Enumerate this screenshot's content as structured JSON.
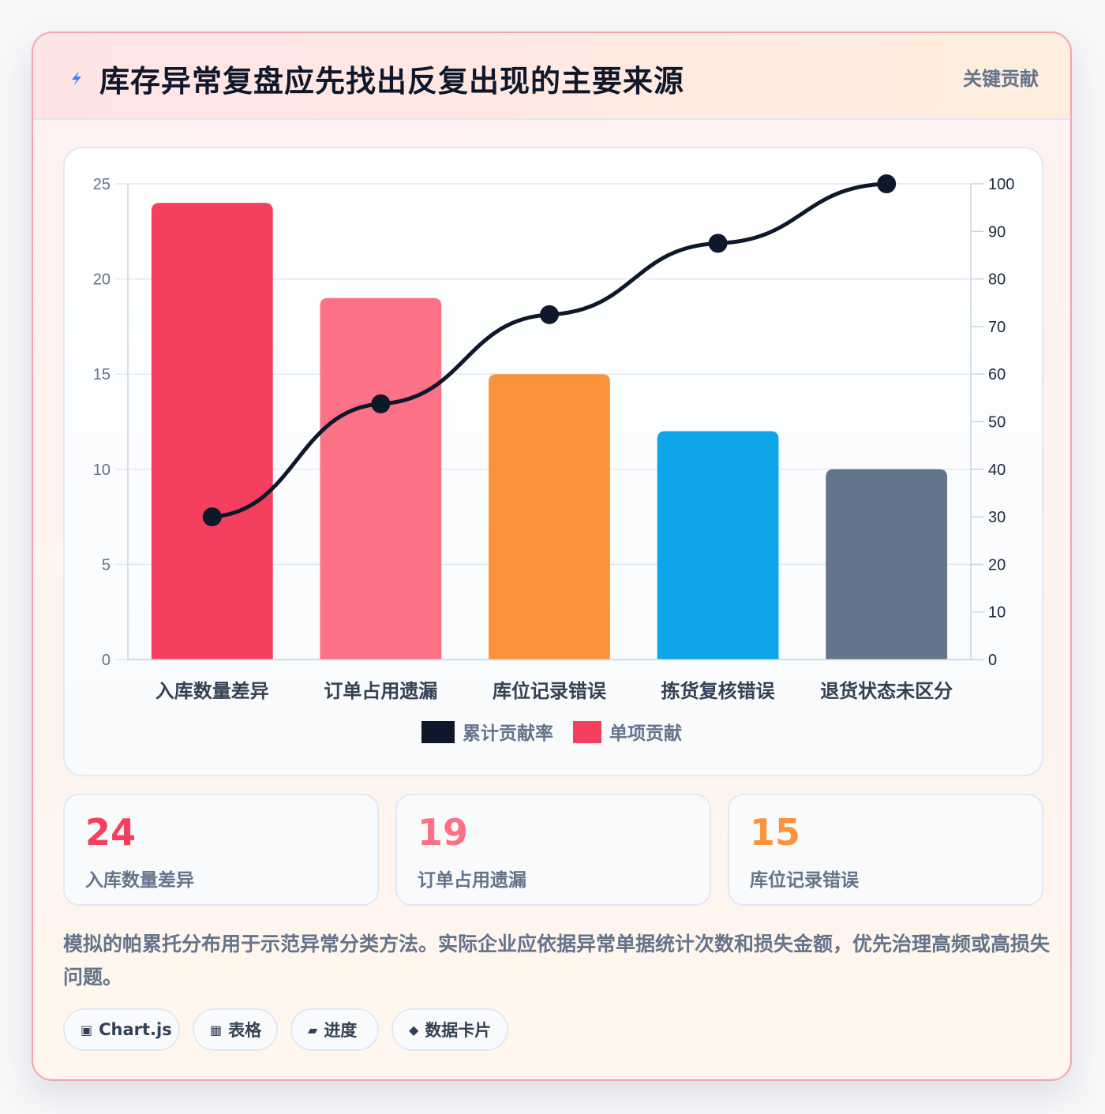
{
  "header": {
    "title": "库存异常复盘应先找出反复出现的主要来源",
    "badge": "关键贡献",
    "icon": "lightning-icon"
  },
  "chart_data": {
    "type": "bar",
    "categories": [
      "入库数量差异",
      "订单占用遗漏",
      "库位记录错误",
      "拣货复核错误",
      "退货状态未区分"
    ],
    "series": [
      {
        "name": "单项贡献",
        "type": "bar",
        "axis": "left",
        "values": [
          24,
          19,
          15,
          12,
          10
        ],
        "colors": [
          "#f43f5e",
          "#fb7185",
          "#fb923c",
          "#0ea5e9",
          "#64748b"
        ]
      },
      {
        "name": "累计贡献率",
        "type": "line",
        "axis": "right",
        "values": [
          30,
          53.75,
          72.5,
          87.5,
          100
        ],
        "color": "#0f172a"
      }
    ],
    "ylim": [
      0,
      25
    ],
    "y_ticks": [
      "0",
      "5",
      "10",
      "15",
      "20",
      "25"
    ],
    "y2lim": [
      0,
      100
    ],
    "y2_ticks": [
      "0",
      "10",
      "20",
      "30",
      "40",
      "50",
      "60",
      "70",
      "80",
      "90",
      "100"
    ],
    "grid": true,
    "legend_position": "bottom",
    "legend": [
      {
        "label": "累计贡献率",
        "color": "#0f172a"
      },
      {
        "label": "单项贡献",
        "color": "#f43f5e"
      }
    ]
  },
  "stats": [
    {
      "value": "24",
      "label": "入库数量差异",
      "color": "#f43f5e"
    },
    {
      "value": "19",
      "label": "订单占用遗漏",
      "color": "#fb7185"
    },
    {
      "value": "15",
      "label": "库位记录错误",
      "color": "#fb923c"
    }
  ],
  "note": "模拟的帕累托分布用于示范异常分类方法。实际企业应依据异常单据统计次数和损失金额，优先治理高频或高损失问题。",
  "tags": [
    {
      "icon": "▣",
      "icon_name": "chart-icon",
      "label": "Chart.js"
    },
    {
      "icon": "▦",
      "icon_name": "table-icon",
      "label": "表格"
    },
    {
      "icon": "▰",
      "icon_name": "progress-icon",
      "label": "进度"
    },
    {
      "icon": "◆",
      "icon_name": "diamond-icon",
      "label": "数据卡片"
    }
  ]
}
